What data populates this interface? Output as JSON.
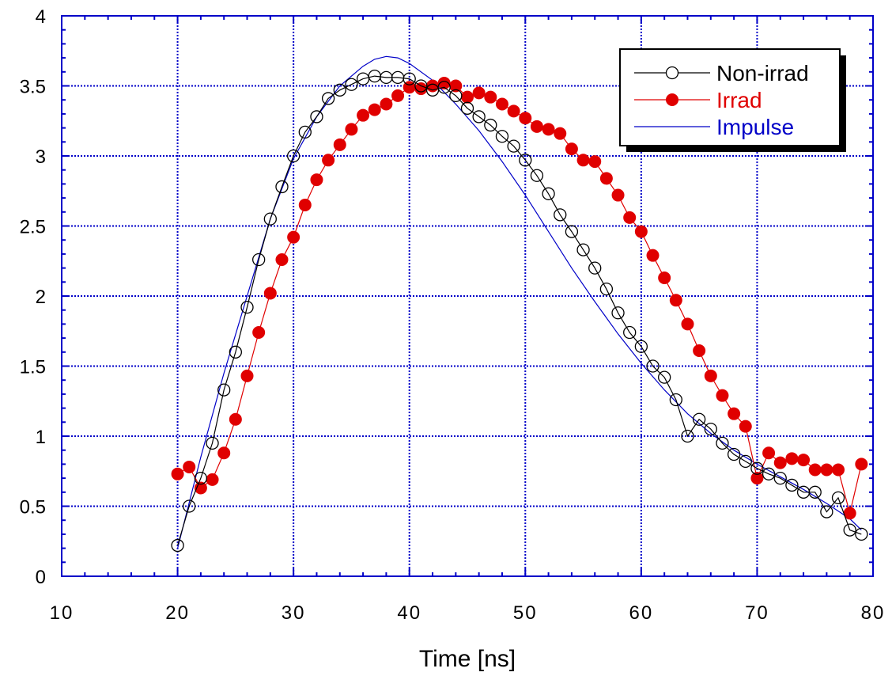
{
  "chart_data": {
    "type": "line",
    "title": "",
    "xlabel": "Time [ns]",
    "ylabel": "",
    "xlim": [
      10,
      80
    ],
    "ylim": [
      0,
      4
    ],
    "xticks": [
      "10",
      "20",
      "30",
      "40",
      "50",
      "60",
      "70",
      "80"
    ],
    "yticks": [
      "0",
      "0.5",
      "1",
      "1.5",
      "2",
      "2.5",
      "3",
      "3.5",
      "4"
    ],
    "grid": true,
    "legend_position": "top-right",
    "series": [
      {
        "name": "Non-irrad",
        "color": "#000000",
        "marker": "open-circle",
        "x": [
          20,
          21,
          22,
          23,
          24,
          25,
          26,
          27,
          28,
          29,
          30,
          31,
          32,
          33,
          34,
          35,
          36,
          37,
          38,
          39,
          40,
          41,
          42,
          43,
          44,
          45,
          46,
          47,
          48,
          49,
          50,
          51,
          52,
          53,
          54,
          55,
          56,
          57,
          58,
          59,
          60,
          61,
          62,
          63,
          64,
          65,
          66,
          67,
          68,
          69,
          70,
          71,
          72,
          73,
          74,
          75,
          76,
          77,
          78,
          79
        ],
        "y": [
          0.22,
          0.5,
          0.7,
          0.95,
          1.33,
          1.6,
          1.92,
          2.26,
          2.55,
          2.78,
          3.0,
          3.17,
          3.28,
          3.41,
          3.47,
          3.51,
          3.55,
          3.57,
          3.56,
          3.56,
          3.55,
          3.5,
          3.47,
          3.49,
          3.43,
          3.34,
          3.28,
          3.22,
          3.14,
          3.07,
          2.97,
          2.86,
          2.73,
          2.58,
          2.46,
          2.33,
          2.2,
          2.05,
          1.88,
          1.74,
          1.64,
          1.5,
          1.42,
          1.26,
          1.0,
          1.12,
          1.05,
          0.95,
          0.87,
          0.82,
          0.77,
          0.73,
          0.7,
          0.65,
          0.6,
          0.6,
          0.46,
          0.56,
          0.33,
          0.3
        ]
      },
      {
        "name": "Irrad",
        "color": "#e00000",
        "marker": "filled-circle",
        "x": [
          20,
          21,
          22,
          23,
          24,
          25,
          26,
          27,
          28,
          29,
          30,
          31,
          32,
          33,
          34,
          35,
          36,
          37,
          38,
          39,
          40,
          41,
          42,
          43,
          44,
          45,
          46,
          47,
          48,
          49,
          50,
          51,
          52,
          53,
          54,
          55,
          56,
          57,
          58,
          59,
          60,
          61,
          62,
          63,
          64,
          65,
          66,
          67,
          68,
          69,
          70,
          71,
          72,
          73,
          74,
          75,
          76,
          77,
          78,
          79
        ],
        "y": [
          0.73,
          0.78,
          0.63,
          0.69,
          0.88,
          1.12,
          1.43,
          1.74,
          2.02,
          2.26,
          2.42,
          2.65,
          2.83,
          2.97,
          3.08,
          3.19,
          3.29,
          3.33,
          3.37,
          3.43,
          3.49,
          3.48,
          3.5,
          3.52,
          3.5,
          3.42,
          3.45,
          3.42,
          3.37,
          3.32,
          3.27,
          3.21,
          3.19,
          3.16,
          3.05,
          2.97,
          2.96,
          2.84,
          2.72,
          2.56,
          2.46,
          2.29,
          2.13,
          1.97,
          1.8,
          1.61,
          1.43,
          1.29,
          1.16,
          1.07,
          0.7,
          0.88,
          0.81,
          0.84,
          0.83,
          0.76,
          0.76,
          0.76,
          0.45,
          0.8
        ]
      },
      {
        "name": "Impulse",
        "color": "#0000c8",
        "marker": "none",
        "x": [
          20,
          22,
          24,
          26,
          28,
          30,
          32,
          34,
          36,
          37,
          38,
          39,
          40,
          42,
          44,
          46,
          48,
          50,
          52,
          54,
          56,
          58,
          60,
          62,
          64,
          66,
          68,
          70,
          72,
          74,
          76,
          78,
          79
        ],
        "y": [
          0.2,
          0.85,
          1.45,
          2.0,
          2.55,
          2.98,
          3.28,
          3.5,
          3.64,
          3.69,
          3.71,
          3.7,
          3.66,
          3.54,
          3.37,
          3.18,
          2.96,
          2.72,
          2.46,
          2.2,
          1.96,
          1.73,
          1.52,
          1.33,
          1.16,
          1.02,
          0.9,
          0.8,
          0.71,
          0.62,
          0.52,
          0.41,
          0.33
        ]
      }
    ]
  }
}
